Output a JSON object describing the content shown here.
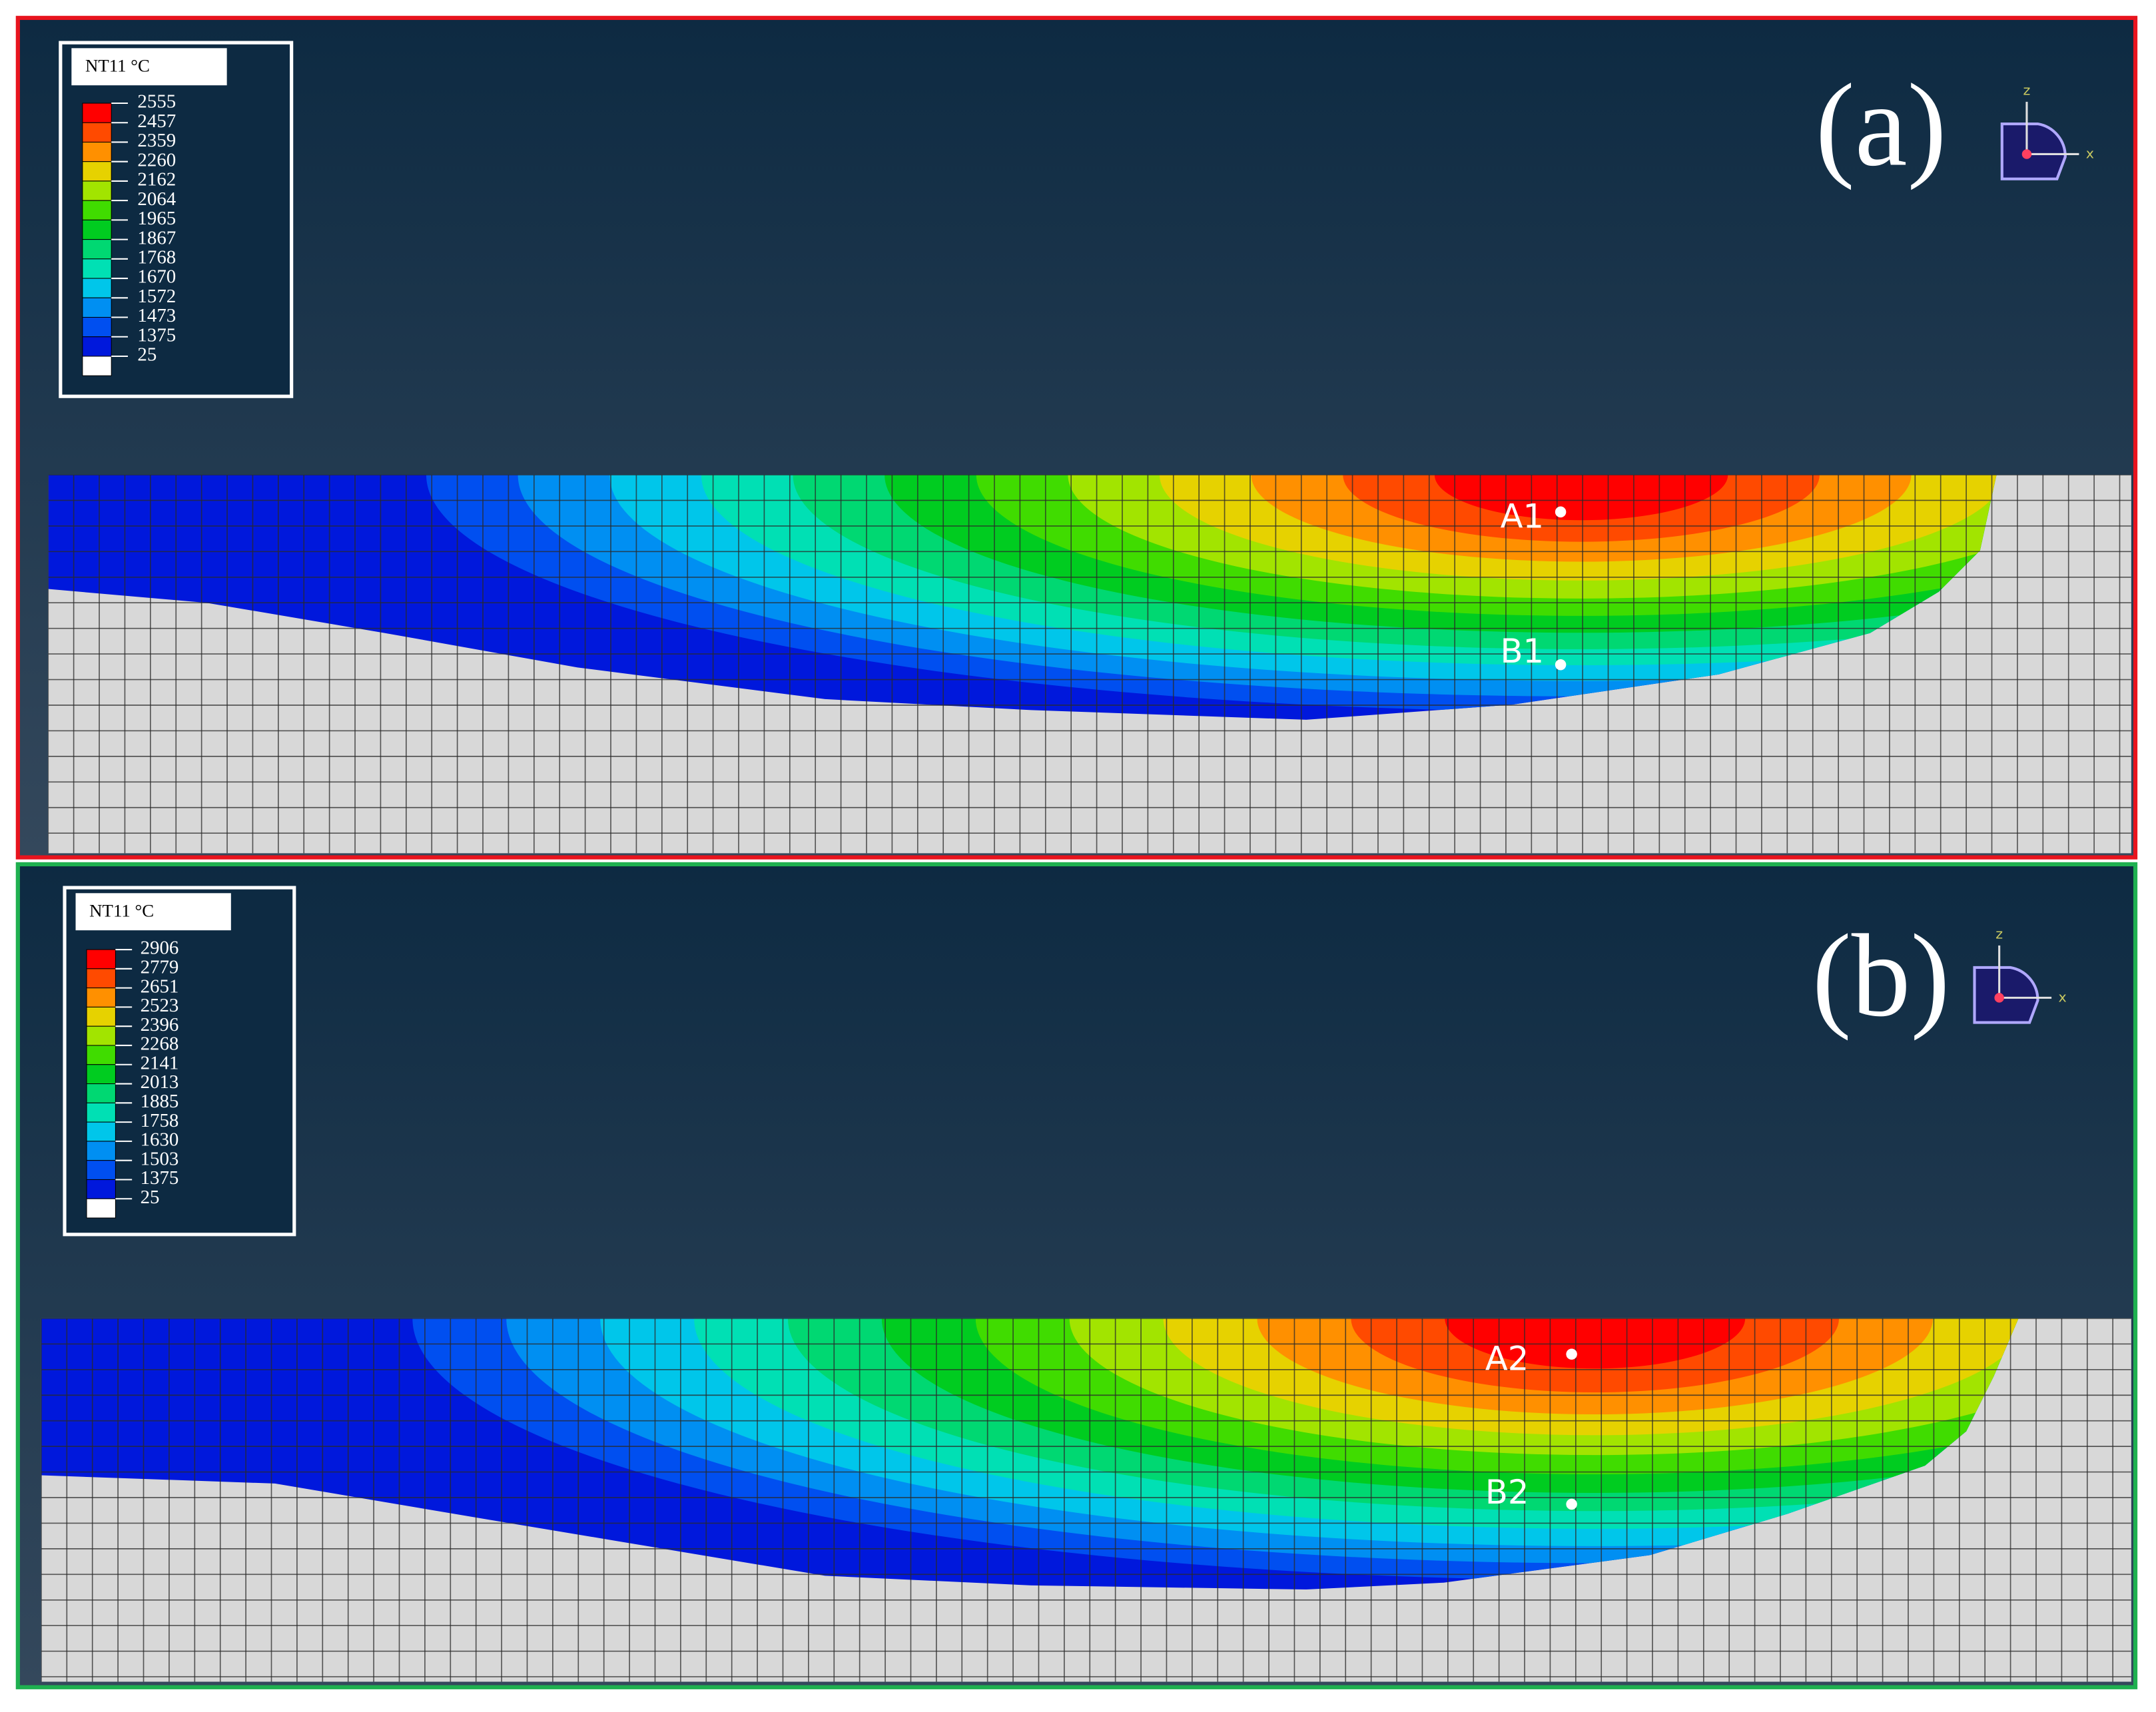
{
  "panels": [
    {
      "label": "(a)",
      "legend_title": "NT11  °C",
      "legend_values": [
        2555,
        2457,
        2359,
        2260,
        2162,
        2064,
        1965,
        1867,
        1768,
        1670,
        1572,
        1473,
        1375,
        25
      ],
      "points": [
        "A1",
        "B1"
      ],
      "axis_labels": [
        "z",
        "x"
      ]
    },
    {
      "label": "(b)",
      "legend_title": "NT11  °C",
      "legend_values": [
        2906,
        2779,
        2651,
        2523,
        2396,
        2268,
        2141,
        2013,
        1885,
        1758,
        1630,
        1503,
        1375,
        25
      ],
      "points": [
        "A2",
        "B2"
      ],
      "axis_labels": [
        "z",
        "x"
      ]
    }
  ]
}
